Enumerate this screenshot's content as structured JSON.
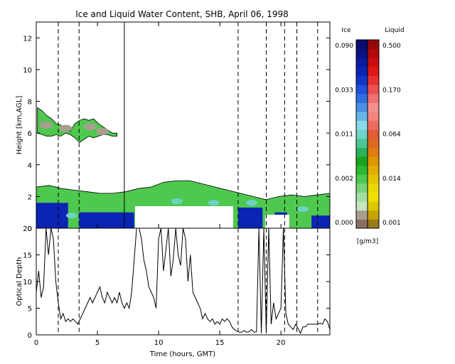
{
  "title": "Ice and Liquid Water Content, SHB, April 06, 1998",
  "colors": {
    "ice_scale": [
      "#8c6e5e",
      "#a89e8e",
      "#c6e6c0",
      "#a4dea0",
      "#7ad27a",
      "#4ec84e",
      "#2eb82e",
      "#1aa31a",
      "#2cb25a",
      "#4cc494",
      "#6ed2c4",
      "#8ad8e8",
      "#68b6e8",
      "#4a90e0",
      "#2f6ee0",
      "#1d4fd8",
      "#1235c8",
      "#0c24b4",
      "#0a1ba0",
      "#0a1282",
      "#0a0c6e"
    ],
    "liq_scale": [
      "#9a7a1a",
      "#c8a400",
      "#dcc800",
      "#f0e000",
      "#e8d800",
      "#e4c400",
      "#e0ae00",
      "#e09600",
      "#e07c10",
      "#de6a22",
      "#e45a32",
      "#ee6c60",
      "#f2847c",
      "#f29090",
      "#f07070",
      "#ec5050",
      "#e83030",
      "#e01818",
      "#c81010",
      "#b00a0a",
      "#960808"
    ],
    "ice_cloud_base": "#4ec84e",
    "ice_cloud_dense": "#0c24b4",
    "gray_cloud": "#a89e8e"
  },
  "colorbar": {
    "ice_label": "Ice",
    "liquid_label": "Liquid",
    "ice_ticks": [
      "0.090",
      "0.033",
      "0.011",
      "0.002",
      "0.000"
    ],
    "liquid_ticks": [
      "0.500",
      "0.170",
      "0.064",
      "0.014",
      "0.001"
    ],
    "units": "[g/m3]"
  },
  "chart_data": [
    {
      "type": "heatmap",
      "title": "Ice and Liquid Water Content, SHB, April 06, 1998",
      "xlabel": "",
      "ylabel": "Height [km,AGL]",
      "xlim": [
        0,
        24
      ],
      "ylim": [
        0,
        13
      ],
      "x_ticks": [
        "0",
        "5",
        "10",
        "15",
        "20"
      ],
      "y_ticks": [
        "0",
        "2",
        "4",
        "6",
        "8",
        "10",
        "12"
      ],
      "dashed_lines_x": [
        1.8,
        3.5,
        16.5,
        18.8,
        20.3,
        21.3,
        23.0
      ],
      "solid_lines_x": [
        7.2
      ],
      "upper_cloud_layer": {
        "x_start": 0.1,
        "x_end": 6.6,
        "base_km": 5.5,
        "top_km": 7.6
      },
      "lower_cloud_layer": {
        "x_start": 0.0,
        "x_end": 24.0,
        "base_km": 0.0,
        "top_km_range": [
          1.5,
          3.0
        ]
      }
    },
    {
      "type": "line",
      "xlabel": "Time (hours, GMT)",
      "ylabel": "Optical Depth",
      "xlim": [
        0,
        24
      ],
      "ylim": [
        0,
        20
      ],
      "x_ticks": [
        "0",
        "5",
        "10",
        "15",
        "20"
      ],
      "y_ticks": [
        "0",
        "5",
        "10",
        "15",
        "20"
      ],
      "dashed_lines_x": [
        1.8,
        3.5,
        16.5,
        18.8,
        20.3,
        21.3,
        23.0
      ],
      "series": [
        {
          "x": [
            0.0,
            0.2,
            0.4,
            0.6,
            0.8,
            1.0,
            1.2,
            1.4,
            1.6,
            1.8,
            2.0,
            2.2,
            2.4,
            2.6,
            2.8,
            3.0,
            3.2,
            3.4,
            3.6,
            3.8,
            4.0,
            4.2,
            4.4,
            4.6,
            4.8,
            5.0,
            5.2,
            5.4,
            5.6,
            5.8,
            6.0,
            6.2,
            6.4,
            6.6,
            6.8,
            7.0,
            7.2,
            7.4,
            7.6,
            7.8,
            8.0,
            8.2,
            8.4,
            8.6,
            8.8,
            9.0,
            9.2,
            9.4,
            9.6,
            9.8,
            10.0,
            10.2,
            10.4,
            10.6,
            10.8,
            11.0,
            11.2,
            11.4,
            11.6,
            11.8,
            12.0,
            12.2,
            12.4,
            12.6,
            12.8,
            13.0,
            13.2,
            13.4,
            13.6,
            13.8,
            14.0,
            14.2,
            14.4,
            14.6,
            14.8,
            15.0,
            15.2,
            15.4,
            15.6,
            15.8,
            16.0,
            16.2,
            16.4,
            16.6,
            16.8,
            17.0,
            17.2,
            17.4,
            17.6,
            17.8,
            18.0,
            18.2,
            18.4,
            18.6,
            18.8,
            19.0,
            19.2,
            19.4,
            19.6,
            19.8,
            20.0,
            20.2,
            20.4,
            20.6,
            20.8,
            21.0,
            21.2,
            21.4,
            21.6,
            21.8,
            22.0,
            22.2,
            22.4,
            22.6,
            22.8,
            23.0,
            23.2,
            23.4,
            23.6,
            23.8,
            24.0
          ],
          "y": [
            8,
            12,
            7,
            9,
            20,
            15,
            20,
            18,
            10,
            6,
            3,
            4,
            2.5,
            3,
            2.5,
            3,
            2.5,
            2,
            3,
            4,
            5,
            6,
            7,
            6,
            7,
            8,
            9,
            7,
            6,
            8,
            7,
            6,
            7,
            6,
            8,
            6,
            5,
            6,
            5,
            8,
            14,
            20,
            20,
            18,
            14,
            12,
            9,
            8,
            7,
            5,
            18,
            20,
            12,
            16,
            20,
            11,
            14,
            20,
            15,
            13,
            20,
            18,
            10,
            15,
            8,
            7,
            6,
            5,
            3,
            4,
            3,
            2.5,
            3,
            2,
            2.5,
            2,
            3,
            2.5,
            3,
            2.5,
            1.5,
            1,
            0.7,
            0.5,
            0.5,
            0.8,
            0.5,
            0.6,
            1,
            0.5,
            0.6,
            20,
            0.3,
            20,
            0.3,
            20,
            2,
            6,
            3,
            4,
            5,
            20,
            4,
            2,
            1.5,
            1,
            2,
            1.2,
            0.3,
            1.5,
            1.5,
            2,
            2,
            2,
            2,
            2,
            2.2,
            2,
            3,
            2.5,
            1
          ]
        }
      ]
    }
  ]
}
